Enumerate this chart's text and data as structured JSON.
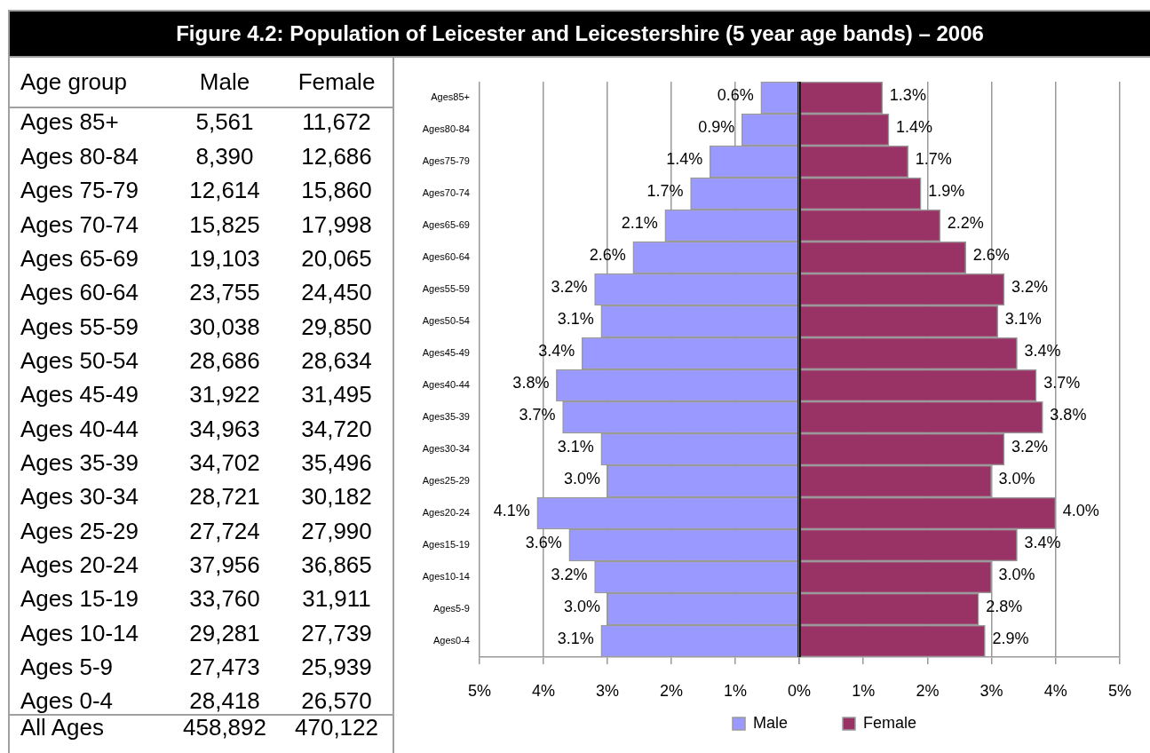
{
  "chart_data": [
    {
      "type": "other",
      "title": "Figure 4.2: Population of Leicester and Leicestershire (5 year age bands) – 2006",
      "ylabel": "Age group",
      "categories": [
        "Ages 85+",
        "Ages 80-84",
        "Ages 75-79",
        "Ages 70-74",
        "Ages 65-69",
        "Ages 60-64",
        "Ages 55-59",
        "Ages 50-54",
        "Ages 45-49",
        "Ages 40-44",
        "Ages 35-39",
        "Ages 30-34",
        "Ages 25-29",
        "Ages 20-24",
        "Ages 15-19",
        "Ages 10-14",
        "Ages 5-9",
        "Ages 0-4",
        "All Ages"
      ],
      "series": [
        {
          "name": "Male",
          "values": [
            5561,
            8390,
            12614,
            15825,
            19103,
            23755,
            30038,
            28686,
            31922,
            34963,
            34702,
            28721,
            27724,
            37956,
            33760,
            29281,
            27473,
            28418,
            458892
          ],
          "value_labels": [
            "5,561",
            "8,390",
            "12,614",
            "15,825",
            "19,103",
            "23,755",
            "30,038",
            "28,686",
            "31,922",
            "34,963",
            "34,702",
            "28,721",
            "27,724",
            "37,956",
            "33,760",
            "29,281",
            "27,473",
            "28,418",
            "458,892"
          ]
        },
        {
          "name": "Female",
          "values": [
            11672,
            12686,
            15860,
            17998,
            20065,
            24450,
            29850,
            28634,
            31495,
            34720,
            35496,
            30182,
            27990,
            36865,
            31911,
            27739,
            25939,
            26570,
            470122
          ],
          "value_labels": [
            "11,672",
            "12,686",
            "15,860",
            "17,998",
            "20,065",
            "24,450",
            "29,850",
            "28,634",
            "31,495",
            "34,720",
            "35,496",
            "30,182",
            "27,990",
            "36,865",
            "31,911",
            "27,739",
            "25,939",
            "26,570",
            "470,122"
          ]
        }
      ]
    },
    {
      "type": "bar",
      "orientation": "horizontal",
      "categories": [
        "Ages85+",
        "Ages80-84",
        "Ages75-79",
        "Ages70-74",
        "Ages65-69",
        "Ages60-64",
        "Ages55-59",
        "Ages50-54",
        "Ages45-49",
        "Ages40-44",
        "Ages35-39",
        "Ages30-34",
        "Ages25-29",
        "Ages20-24",
        "Ages15-19",
        "Ages10-14",
        "Ages5-9",
        "Ages0-4"
      ],
      "series": [
        {
          "name": "Male",
          "color": "#9999ff",
          "values": [
            0.6,
            0.9,
            1.4,
            1.7,
            2.1,
            2.6,
            3.2,
            3.1,
            3.4,
            3.8,
            3.7,
            3.1,
            3.0,
            4.1,
            3.6,
            3.2,
            3.0,
            3.1
          ],
          "value_labels": [
            "0.6%",
            "0.9%",
            "1.4%",
            "1.7%",
            "2.1%",
            "2.6%",
            "3.2%",
            "3.1%",
            "3.4%",
            "3.8%",
            "3.7%",
            "3.1%",
            "3.0%",
            "4.1%",
            "3.6%",
            "3.2%",
            "3.0%",
            "3.1%"
          ]
        }
      ],
      "xlim": [
        5,
        0
      ],
      "xticks": [
        {
          "value": 5,
          "label": "5%"
        },
        {
          "value": 4,
          "label": "4%"
        },
        {
          "value": 3,
          "label": "3%"
        },
        {
          "value": 2,
          "label": "2%"
        },
        {
          "value": 1,
          "label": "1%"
        },
        {
          "value": 0,
          "label": null
        }
      ],
      "grid": "x",
      "legend": "bottom"
    },
    {
      "type": "bar",
      "orientation": "horizontal",
      "categories": [
        null,
        null,
        null,
        null,
        null,
        null,
        null,
        null,
        null,
        null,
        null,
        null,
        null,
        null,
        null,
        null,
        null,
        null
      ],
      "series": [
        {
          "name": "Female",
          "color": "#993366",
          "values": [
            1.3,
            1.4,
            1.7,
            1.9,
            2.2,
            2.6,
            3.2,
            3.1,
            3.4,
            3.7,
            3.8,
            3.2,
            3.0,
            4.0,
            3.4,
            3.0,
            2.8,
            2.9
          ],
          "value_labels": [
            "1.3%",
            "1.4%",
            "1.7%",
            "1.9%",
            "2.2%",
            "2.6%",
            "3.2%",
            "3.1%",
            "3.4%",
            "3.7%",
            "3.8%",
            "3.2%",
            "3.0%",
            "4.0%",
            "3.4%",
            "3.0%",
            "2.8%",
            "2.9%"
          ]
        }
      ],
      "xlim": [
        0,
        5
      ],
      "xticks": [
        {
          "value": 0,
          "label": "0%"
        },
        {
          "value": 1,
          "label": "1%"
        },
        {
          "value": 2,
          "label": "2%"
        },
        {
          "value": 3,
          "label": "3%"
        },
        {
          "value": 4,
          "label": "4%"
        },
        {
          "value": 5,
          "label": "5%"
        }
      ],
      "grid": "x",
      "legend": "bottom"
    }
  ]
}
